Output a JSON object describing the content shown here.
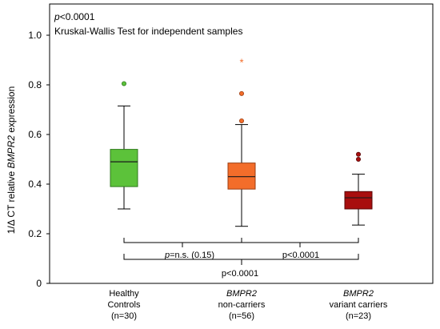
{
  "chart_data": {
    "type": "box",
    "annotation": {
      "p_italic": "p",
      "p_rest": "<0.0001",
      "test_name": "Kruskal-Wallis Test for independent  samples"
    },
    "ylabel": {
      "part1": "1/Δ CT relative ",
      "part2": "BMPR2",
      "part3": " expression"
    },
    "ylim": [
      0,
      1.05
    ],
    "yticks": [
      "0",
      "0.2",
      "0.4",
      "0.6",
      "0.8",
      "1.0"
    ],
    "ytick_values": [
      0,
      0.2,
      0.4,
      0.6,
      0.8,
      1.0
    ],
    "groups": [
      {
        "label_lines": [
          "Healthy",
          "Controls",
          "(n=30)"
        ],
        "italic_first_line": false,
        "color": "#5cc23a",
        "outline": "#2f7a1d",
        "whisker_low": 0.3,
        "q1": 0.39,
        "median": 0.49,
        "q3": 0.54,
        "whisker_high": 0.715,
        "outliers": [
          {
            "value": 0.805,
            "marker": "circle",
            "color": "#5cc23a"
          }
        ]
      },
      {
        "label_lines": [
          "BMPR2",
          "non-carriers",
          "(n=56)"
        ],
        "italic_first_line": true,
        "color": "#f36d2a",
        "outline": "#9c3d10",
        "whisker_low": 0.23,
        "q1": 0.38,
        "median": 0.43,
        "q3": 0.485,
        "whisker_high": 0.64,
        "outliers": [
          {
            "value": 0.655,
            "marker": "circle",
            "color": "#f36d2a"
          },
          {
            "value": 0.765,
            "marker": "circle",
            "color": "#f36d2a"
          },
          {
            "value": 0.895,
            "marker": "star",
            "color": "#f36d2a"
          }
        ]
      },
      {
        "label_lines": [
          "BMPR2",
          "variant carriers",
          "(n=23)"
        ],
        "italic_first_line": true,
        "color": "#a80e0e",
        "outline": "#5a0606",
        "whisker_low": 0.235,
        "q1": 0.3,
        "median": 0.345,
        "q3": 0.37,
        "whisker_high": 0.44,
        "outliers": [
          {
            "value": 0.5,
            "marker": "circle",
            "color": "#a80e0e"
          },
          {
            "value": 0.52,
            "marker": "circle",
            "color": "#a80e0e"
          }
        ]
      }
    ],
    "comparisons": {
      "c12": {
        "italic": "p",
        "rest": "=n.s. (0.15)"
      },
      "c23": {
        "italic": "",
        "rest": "p<0.0001"
      },
      "c13": {
        "italic": "",
        "rest": "p<0.0001"
      }
    }
  }
}
